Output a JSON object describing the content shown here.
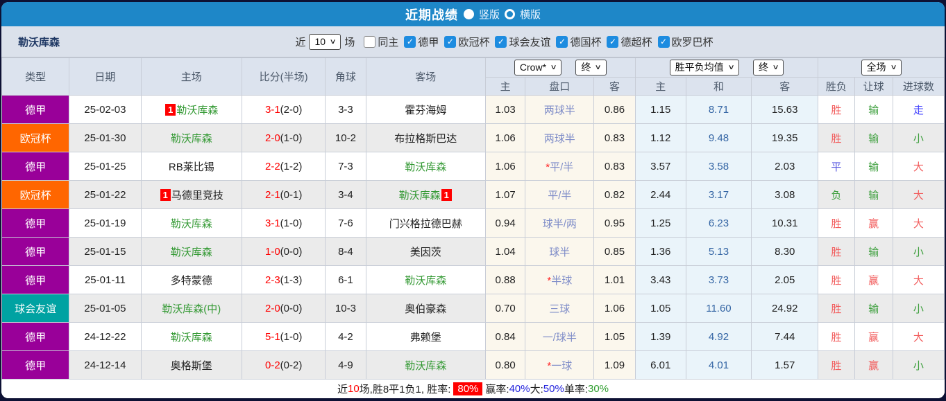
{
  "titlebar": {
    "title": "近期战绩",
    "view_options": [
      {
        "label": "竖版",
        "selected": true
      },
      {
        "label": "横版",
        "selected": false
      }
    ]
  },
  "filter": {
    "team": "勒沃库森",
    "recent_prefix": "近",
    "recent_count": "10",
    "recent_suffix": "场",
    "checkboxes": [
      {
        "label": "同主",
        "checked": false
      },
      {
        "label": "德甲",
        "checked": true
      },
      {
        "label": "欧冠杯",
        "checked": true
      },
      {
        "label": "球会友谊",
        "checked": true
      },
      {
        "label": "德国杯",
        "checked": true
      },
      {
        "label": "德超杯",
        "checked": true
      },
      {
        "label": "欧罗巴杯",
        "checked": true
      }
    ]
  },
  "table": {
    "left_headers": [
      "类型",
      "日期",
      "主场",
      "比分(半场)",
      "角球",
      "客场"
    ],
    "selects": {
      "odds_company": "Crow*",
      "odds_time": "终",
      "avg_label": "胜平负均值",
      "avg_time": "终",
      "scope": "全场"
    },
    "sub_headers": [
      "主",
      "盘口",
      "客",
      "主",
      "和",
      "客",
      "胜负",
      "让球",
      "进球数"
    ],
    "rows": [
      {
        "league": "德甲",
        "date": "25-02-03",
        "home": "勒沃库森",
        "home_is_team": true,
        "home_badge": "1",
        "score": "3-1",
        "half": "(2-0)",
        "corners": "3-3",
        "away": "霍芬海姆",
        "away_is_team": false,
        "away_badge": "",
        "odds_home": "1.03",
        "handicap": "两球半",
        "odds_away": "0.86",
        "avg_home": "1.15",
        "avg_draw": "8.71",
        "avg_away": "15.63",
        "result": "胜",
        "let_result": "输",
        "goals": "走"
      },
      {
        "league": "欧冠杯",
        "date": "25-01-30",
        "home": "勒沃库森",
        "home_is_team": true,
        "home_badge": "",
        "score": "2-0",
        "half": "(1-0)",
        "corners": "10-2",
        "away": "布拉格斯巴达",
        "away_is_team": false,
        "away_badge": "",
        "odds_home": "1.06",
        "handicap": "两球半",
        "odds_away": "0.83",
        "avg_home": "1.12",
        "avg_draw": "9.48",
        "avg_away": "19.35",
        "result": "胜",
        "let_result": "输",
        "goals": "小"
      },
      {
        "league": "德甲",
        "date": "25-01-25",
        "home": "RB莱比锡",
        "home_is_team": false,
        "home_badge": "",
        "score": "2-2",
        "half": "(1-2)",
        "corners": "7-3",
        "away": "勒沃库森",
        "away_is_team": true,
        "away_badge": "",
        "odds_home": "1.06",
        "handicap": "*平/半",
        "odds_away": "0.83",
        "avg_home": "3.57",
        "avg_draw": "3.58",
        "avg_away": "2.03",
        "result": "平",
        "let_result": "输",
        "goals": "大"
      },
      {
        "league": "欧冠杯",
        "date": "25-01-22",
        "home": "马德里竞技",
        "home_is_team": false,
        "home_badge": "1",
        "score": "2-1",
        "half": "(0-1)",
        "corners": "3-4",
        "away": "勒沃库森",
        "away_is_team": true,
        "away_badge": "1",
        "odds_home": "1.07",
        "handicap": "平/半",
        "odds_away": "0.82",
        "avg_home": "2.44",
        "avg_draw": "3.17",
        "avg_away": "3.08",
        "result": "负",
        "let_result": "输",
        "goals": "大"
      },
      {
        "league": "德甲",
        "date": "25-01-19",
        "home": "勒沃库森",
        "home_is_team": true,
        "home_badge": "",
        "score": "3-1",
        "half": "(1-0)",
        "corners": "7-6",
        "away": "门兴格拉德巴赫",
        "away_is_team": false,
        "away_badge": "",
        "odds_home": "0.94",
        "handicap": "球半/两",
        "odds_away": "0.95",
        "avg_home": "1.25",
        "avg_draw": "6.23",
        "avg_away": "10.31",
        "result": "胜",
        "let_result": "赢",
        "goals": "大"
      },
      {
        "league": "德甲",
        "date": "25-01-15",
        "home": "勒沃库森",
        "home_is_team": true,
        "home_badge": "",
        "score": "1-0",
        "half": "(0-0)",
        "corners": "8-4",
        "away": "美因茨",
        "away_is_team": false,
        "away_badge": "",
        "odds_home": "1.04",
        "handicap": "球半",
        "odds_away": "0.85",
        "avg_home": "1.36",
        "avg_draw": "5.13",
        "avg_away": "8.30",
        "result": "胜",
        "let_result": "输",
        "goals": "小"
      },
      {
        "league": "德甲",
        "date": "25-01-11",
        "home": "多特蒙德",
        "home_is_team": false,
        "home_badge": "",
        "score": "2-3",
        "half": "(1-3)",
        "corners": "6-1",
        "away": "勒沃库森",
        "away_is_team": true,
        "away_badge": "",
        "odds_home": "0.88",
        "handicap": "*半球",
        "odds_away": "1.01",
        "avg_home": "3.43",
        "avg_draw": "3.73",
        "avg_away": "2.05",
        "result": "胜",
        "let_result": "赢",
        "goals": "大"
      },
      {
        "league": "球会友谊",
        "date": "25-01-05",
        "home": "勒沃库森(中)",
        "home_is_team": true,
        "home_badge": "",
        "score": "2-0",
        "half": "(0-0)",
        "corners": "10-3",
        "away": "奥伯豪森",
        "away_is_team": false,
        "away_badge": "",
        "odds_home": "0.70",
        "handicap": "三球",
        "odds_away": "1.06",
        "avg_home": "1.05",
        "avg_draw": "11.60",
        "avg_away": "24.92",
        "result": "胜",
        "let_result": "输",
        "goals": "小"
      },
      {
        "league": "德甲",
        "date": "24-12-22",
        "home": "勒沃库森",
        "home_is_team": true,
        "home_badge": "",
        "score": "5-1",
        "half": "(1-0)",
        "corners": "4-2",
        "away": "弗赖堡",
        "away_is_team": false,
        "away_badge": "",
        "odds_home": "0.84",
        "handicap": "一/球半",
        "odds_away": "1.05",
        "avg_home": "1.39",
        "avg_draw": "4.92",
        "avg_away": "7.44",
        "result": "胜",
        "let_result": "赢",
        "goals": "大"
      },
      {
        "league": "德甲",
        "date": "24-12-14",
        "home": "奥格斯堡",
        "home_is_team": false,
        "home_badge": "",
        "score": "0-2",
        "half": "(0-2)",
        "corners": "4-9",
        "away": "勒沃库森",
        "away_is_team": true,
        "away_badge": "",
        "odds_home": "0.80",
        "handicap": "*一球",
        "odds_away": "1.09",
        "avg_home": "6.01",
        "avg_draw": "4.01",
        "avg_away": "1.57",
        "result": "胜",
        "let_result": "赢",
        "goals": "小"
      }
    ]
  },
  "summary": {
    "segments": [
      {
        "text": "近",
        "style": "plain"
      },
      {
        "text": "10",
        "style": "red"
      },
      {
        "text": "场,胜8平1负1, 胜率: ",
        "style": "plain"
      },
      {
        "text": "80%",
        "style": "badge"
      },
      {
        "text": " 赢率:",
        "style": "plain"
      },
      {
        "text": "40%",
        "style": "blue"
      },
      {
        "text": " 大:",
        "style": "plain"
      },
      {
        "text": "50%",
        "style": "blue"
      },
      {
        "text": " 单率:",
        "style": "plain"
      },
      {
        "text": "30%",
        "style": "green"
      }
    ]
  },
  "colors": {
    "header_blue": "#1e87c8",
    "bundesliga_purple": "#990099",
    "champions_league_orange": "#ff6600",
    "friendly_teal": "#00a2a2",
    "team_green": "#339933",
    "score_red": "#fe0000",
    "win_rate_badge_red": "#ff0000"
  }
}
